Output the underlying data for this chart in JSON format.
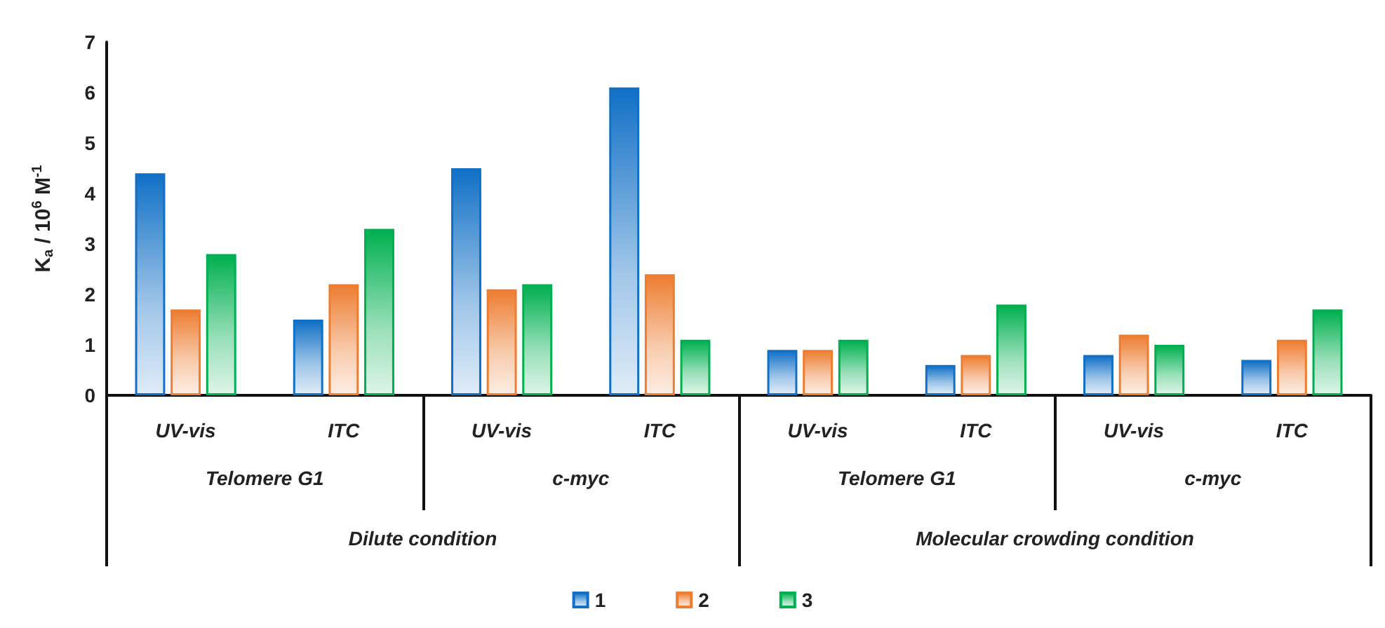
{
  "chart_data": {
    "type": "bar",
    "ylabel": "K$_{a}$ / 10$^{6}$ M$^{-1}$",
    "categories": [
      "UV-vis",
      "ITC",
      "UV-vis",
      "ITC",
      "UV-vis",
      "ITC",
      "UV-vis",
      "ITC"
    ],
    "annotations": [
      "Telomere G1",
      "c-myc",
      "Telomere G1",
      "c-myc",
      "Dilute condition",
      "Molecular crowding condition"
    ],
    "series": [
      {
        "name": "1",
        "color": "#1170c6",
        "values": [
          4.4,
          1.5,
          4.5,
          6.1,
          0.9,
          0.6,
          0.8,
          0.7
        ]
      },
      {
        "name": "2",
        "color": "#ed7d31",
        "values": [
          1.7,
          2.2,
          2.1,
          2.4,
          0.9,
          0.8,
          1.2,
          1.1
        ]
      },
      {
        "name": "3",
        "color": "#00b050",
        "values": [
          2.8,
          3.3,
          2.2,
          1.1,
          1.1,
          1.8,
          1.0,
          1.7
        ]
      }
    ],
    "ylim": [
      0,
      7
    ],
    "yticks": [
      0,
      1,
      2,
      3,
      4,
      5,
      6,
      7
    ],
    "grid": false,
    "legend": "bottom"
  }
}
